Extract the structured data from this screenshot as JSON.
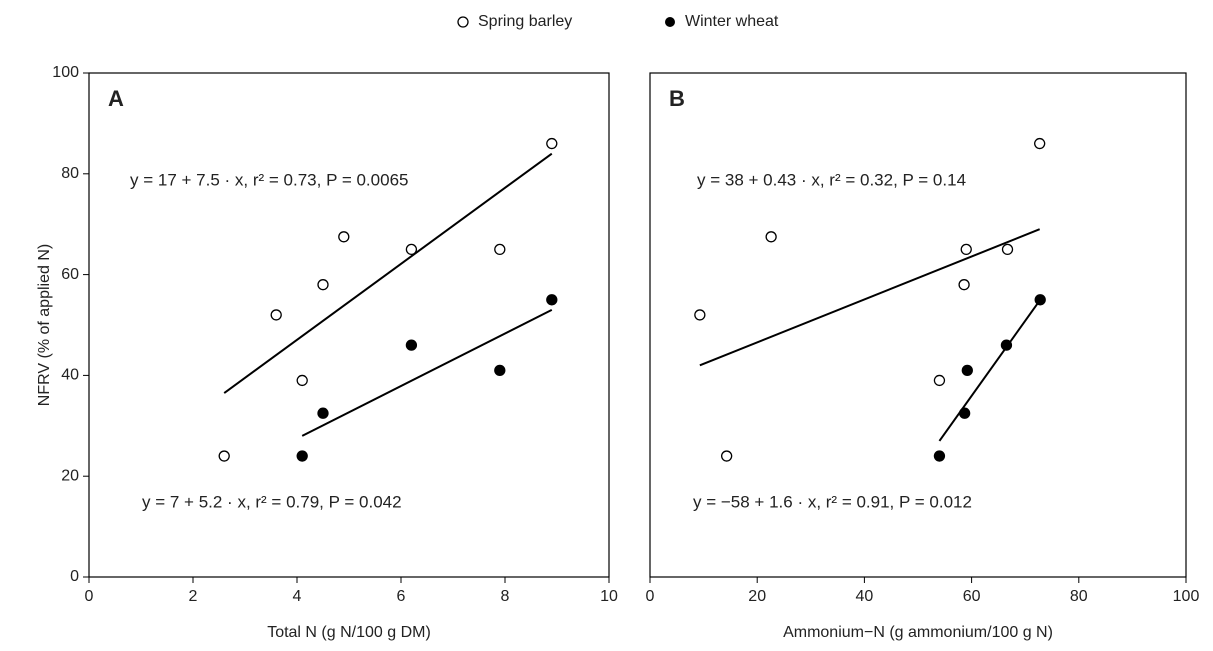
{
  "chart_data": [
    {
      "type": "scatter",
      "panel": "A",
      "xlabel": "Total N (g N/100 g DM)",
      "ylabel": "NFRV (% of applied N)",
      "xlim": [
        0,
        10
      ],
      "xticks": [
        0,
        2,
        4,
        6,
        8,
        10
      ],
      "ylim": [
        0,
        100
      ],
      "yticks": [
        0,
        20,
        40,
        60,
        80,
        100
      ],
      "series": [
        {
          "name": "Spring barley",
          "color": "#000000",
          "marker": "open",
          "x": [
            2.6,
            3.6,
            4.1,
            4.5,
            4.9,
            6.2,
            7.9,
            8.9
          ],
          "values": [
            24,
            52,
            39,
            58,
            67.5,
            65,
            65,
            86
          ]
        },
        {
          "name": "Winter wheat",
          "color": "#000000",
          "marker": "filled",
          "x": [
            4.1,
            4.5,
            6.2,
            7.9,
            8.9
          ],
          "values": [
            24,
            32.5,
            46,
            41,
            55
          ]
        }
      ],
      "fits": [
        {
          "x": [
            2.6,
            8.9
          ],
          "values": [
            36.5,
            84
          ]
        },
        {
          "x": [
            4.1,
            8.9
          ],
          "values": [
            28,
            53
          ]
        }
      ],
      "annotations": [
        "y = 17 + 7.5 · x,  r² = 0.73,  P = 0.0065",
        "y = 7 + 5.2 · x,  r² = 0.79,  P = 0.042"
      ]
    },
    {
      "type": "scatter",
      "panel": "B",
      "xlabel": "Ammonium−N (g ammonium/100 g N)",
      "xlim": [
        0,
        100
      ],
      "xticks": [
        0,
        20,
        40,
        60,
        80,
        100
      ],
      "ylim": [
        0,
        100
      ],
      "series": [
        {
          "name": "Spring barley",
          "color": "#000000",
          "marker": "open",
          "x": [
            9.3,
            14.3,
            22.6,
            54,
            58.6,
            59,
            66.7,
            72.7
          ],
          "values": [
            52,
            24,
            67.5,
            39,
            58,
            65,
            65,
            86
          ]
        },
        {
          "name": "Winter wheat",
          "color": "#000000",
          "marker": "filled",
          "x": [
            54,
            58.7,
            59.2,
            66.5,
            72.8
          ],
          "values": [
            24,
            32.5,
            41,
            46,
            55
          ]
        }
      ],
      "fits": [
        {
          "x": [
            9.3,
            72.7
          ],
          "values": [
            42,
            69
          ]
        },
        {
          "x": [
            54,
            72.8
          ],
          "values": [
            27,
            55
          ]
        }
      ],
      "annotations": [
        "y = 38 + 0.43 · x,  r² = 0.32,  P = 0.14",
        "y = −58 + 1.6 · x,  r² = 0.91,  P = 0.012"
      ]
    }
  ]
}
